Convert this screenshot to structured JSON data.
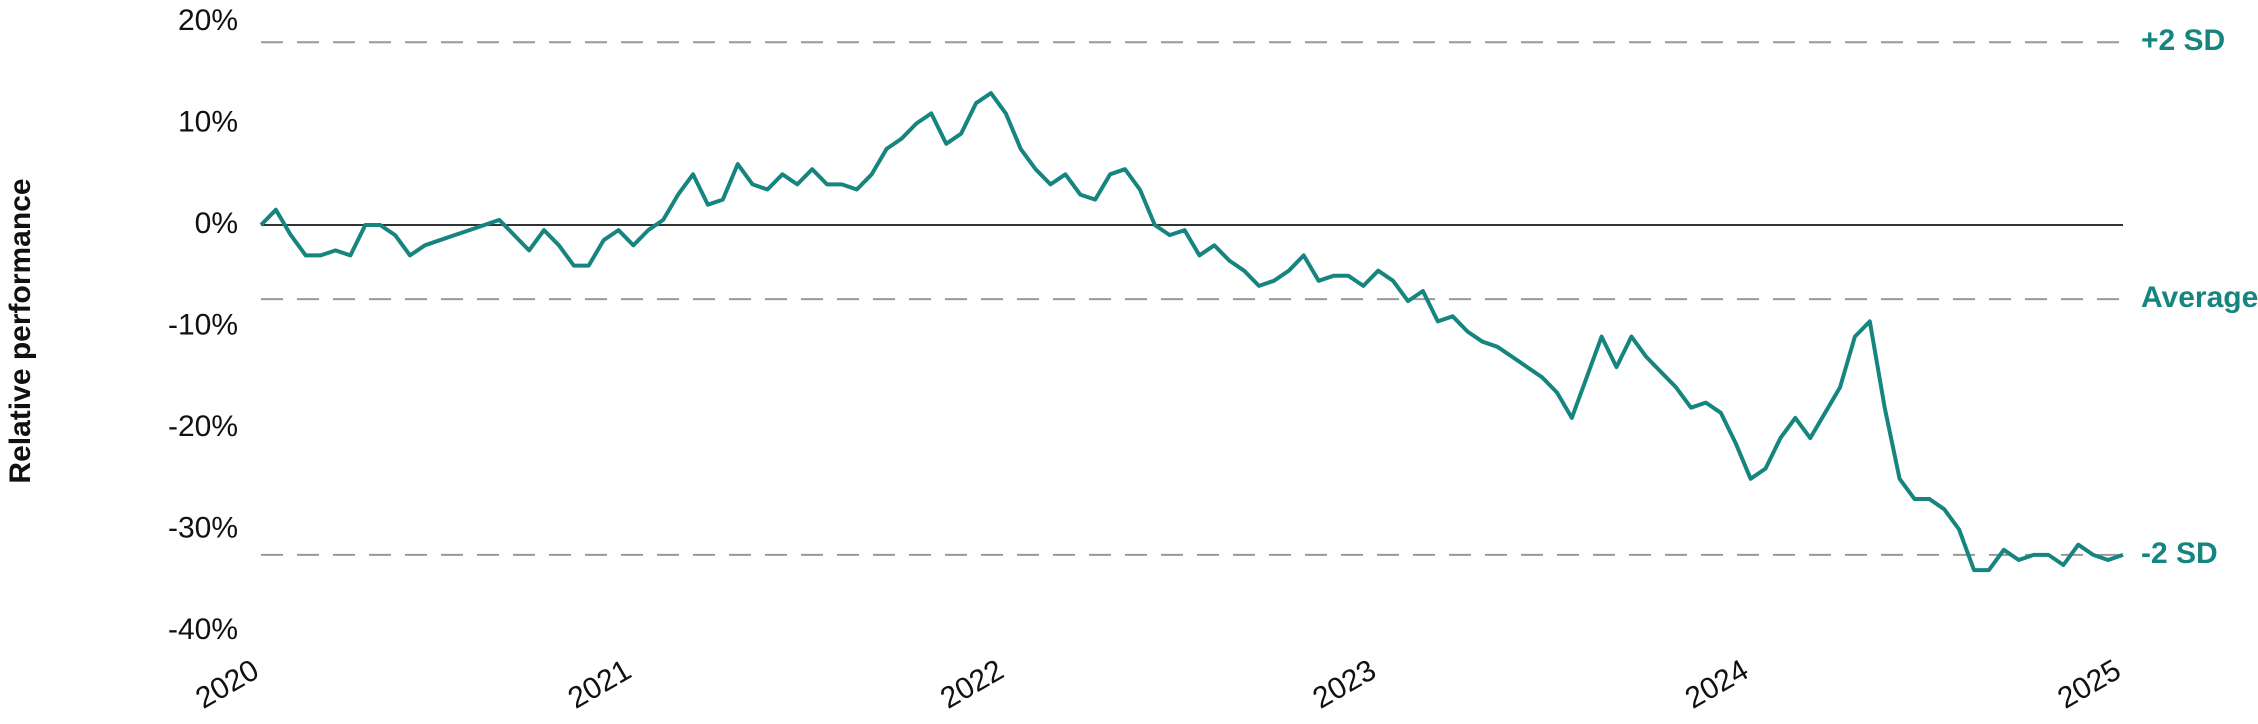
{
  "chart_data": {
    "type": "line",
    "y_label": "Relative performance",
    "xlim": [
      2020,
      2025
    ],
    "xticks": [
      2020,
      2021,
      2022,
      2023,
      2024,
      2025
    ],
    "ylim": [
      -40,
      20
    ],
    "yticks": [
      {
        "value": 20,
        "label": "20%"
      },
      {
        "value": 10,
        "label": "10%"
      },
      {
        "value": 0,
        "label": "0%"
      },
      {
        "value": -10,
        "label": "-10%"
      },
      {
        "value": -20,
        "label": "-20%"
      },
      {
        "value": -30,
        "label": "-30%"
      },
      {
        "value": -40,
        "label": "-40%"
      }
    ],
    "color": "#168580",
    "reference_lines": [
      {
        "value": 18,
        "label": "+2 SD"
      },
      {
        "value": -7.3,
        "label": "Average"
      },
      {
        "value": -32.5,
        "label": "-2 SD"
      }
    ],
    "x": [
      2020,
      2020.04,
      2020.08,
      2020.12,
      2020.16,
      2020.2,
      2020.24,
      2020.28,
      2020.32,
      2020.36,
      2020.4,
      2020.44,
      2020.48,
      2020.52,
      2020.56,
      2020.6,
      2020.64,
      2020.68,
      2020.72,
      2020.76,
      2020.8,
      2020.84,
      2020.88,
      2020.92,
      2020.96,
      2021,
      2021.04,
      2021.08,
      2021.12,
      2021.16,
      2021.2,
      2021.24,
      2021.28,
      2021.32,
      2021.36,
      2021.4,
      2021.44,
      2021.48,
      2021.52,
      2021.56,
      2021.6,
      2021.64,
      2021.68,
      2021.72,
      2021.76,
      2021.8,
      2021.84,
      2021.88,
      2021.92,
      2021.96,
      2022,
      2022.04,
      2022.08,
      2022.12,
      2022.16,
      2022.2,
      2022.24,
      2022.28,
      2022.32,
      2022.36,
      2022.4,
      2022.44,
      2022.48,
      2022.52,
      2022.56,
      2022.6,
      2022.64,
      2022.68,
      2022.72,
      2022.76,
      2022.8,
      2022.84,
      2022.88,
      2022.92,
      2022.96,
      2023,
      2023.04,
      2023.08,
      2023.12,
      2023.16,
      2023.2,
      2023.24,
      2023.28,
      2023.32,
      2023.36,
      2023.4,
      2023.44,
      2023.48,
      2023.52,
      2023.56,
      2023.6,
      2023.64,
      2023.68,
      2023.72,
      2023.76,
      2023.8,
      2023.84,
      2023.88,
      2023.92,
      2023.96,
      2024,
      2024.04,
      2024.08,
      2024.12,
      2024.16,
      2024.2,
      2024.24,
      2024.28,
      2024.32,
      2024.36,
      2024.4,
      2024.44,
      2024.48,
      2024.52,
      2024.56,
      2024.6,
      2024.64,
      2024.68,
      2024.72,
      2024.76,
      2024.8,
      2024.84,
      2024.88,
      2024.92,
      2024.96,
      2025
    ],
    "values": [
      0,
      1.5,
      -1,
      -3,
      -3,
      -2.5,
      -3,
      0,
      0,
      -1,
      -3,
      -2,
      -1.5,
      -1,
      -0.5,
      0,
      0.5,
      -1,
      -2.5,
      -0.5,
      -2,
      -4,
      -4,
      -1.5,
      -0.5,
      -2,
      -0.5,
      0.5,
      3,
      5,
      2,
      2.5,
      6,
      4,
      3.5,
      5,
      4,
      5.5,
      4,
      4,
      3.5,
      5,
      7.5,
      8.5,
      10,
      11,
      8,
      9,
      12,
      13,
      11,
      7.5,
      5.5,
      4,
      5,
      3,
      2.5,
      5,
      5.5,
      3.5,
      0,
      -1,
      -0.5,
      -3,
      -2,
      -3.5,
      -4.5,
      -6,
      -5.5,
      -4.5,
      -3,
      -5.5,
      -5,
      -5,
      -6,
      -4.5,
      -5.5,
      -7.5,
      -6.5,
      -9.5,
      -9,
      -10.5,
      -11.5,
      -12,
      -13,
      -14,
      -15,
      -16.5,
      -19,
      -15,
      -11,
      -14,
      -11,
      -13,
      -14.5,
      -16,
      -18,
      -17.5,
      -18.5,
      -21.5,
      -25,
      -24,
      -21,
      -19,
      -21,
      -18.5,
      -16,
      -11,
      -9.5,
      -18,
      -25,
      -27,
      -27,
      -28,
      -30,
      -34,
      -34,
      -32,
      -33,
      -32.5,
      -32.5,
      -33.5,
      -31.5,
      -32.5,
      -33,
      -32.5
    ]
  }
}
